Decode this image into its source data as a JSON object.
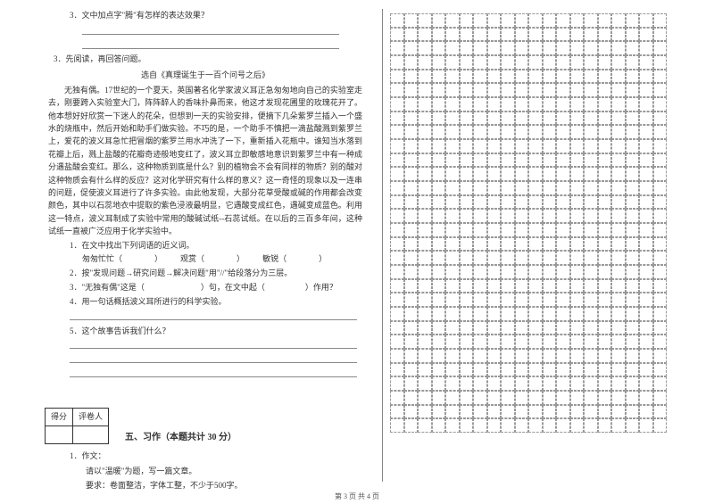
{
  "q2_3": "3．文中加点字\"腾\"有怎样的表达效果？",
  "q3_intro": "3．先阅读，再回答问题。",
  "q3_title": "选自《真理诞生于一百个问号之后》",
  "q3_passage": "无独有偶。17世纪的一个夏天，英国著名化学家波义耳正急匆匆地向自己的实验室走去，刚要跨入实验室大门，阵阵醉人的香味扑鼻而来，他这才发现花圃里的玫瑰花开了。他本想好好欣赏一下迷人的花朵，但想到一天的实验安排，便摘下几朵紫罗兰插入一个盛水的烧瓶中，然后开始和助手们做实验。不巧的是，一个助手不慎把一滴盐酸溅到紫罗兰上，爱花的波义耳急忙把冒烟的紫罗兰用水冲洗了一下，重新插入花瓶中。谁知当水落到花瓣上后，溅上盐酸的花瓣奇迹般地变红了，波义耳立即敏感地意识到紫罗兰中有一种成分遇盐酸会变红。那么，这种物质到底是什么？别的植物会不会有同样的物质？别的酸对这种物质会有什么样的反应？这对化学研究有什么样的意义？这一奇怪的现象以及一连串的问题，促使波义耳进行了许多实验。由此他发现，大部分花草受酸或碱的作用都会改变颜色，其中以石蕊地衣中提取的紫色浸液最明显，它遇酸变成红色，遇碱变成蓝色。利用这一特点，波义耳制成了实验中常用的酸碱试纸--石蕊试纸。在以后的三百多年间，这种试纸一直被广泛应用于化学实验中。",
  "q3_1": "1．在文中找出下列词语的近义词。",
  "q3_1_a": "匆匆忙忙（",
  "q3_1_b": "观赏（",
  "q3_1_c": "敏锐（",
  "q3_2": "2．按\"发现问题→研究问题→解决问题\"用\"//\"给段落分为三层。",
  "q3_3": "3．\"无独有偶\"这是（　　　　　　　）句，在文中起（　　　　　）作用？",
  "q3_4": "4．用一句话概括波义耳所进行的科学实验。",
  "q3_5": "5．这个故事告诉我们什么？",
  "score_h1": "得分",
  "score_h2": "评卷人",
  "section5": "五、习作（本题共计 30 分）",
  "essay_1": "1．作文：",
  "essay_2": "请以\"温暖\"为题，写一篇文章。",
  "essay_3": "要求：卷面整洁，字体工整，不少于500字。",
  "footer": "第 3 页 共 4 页"
}
